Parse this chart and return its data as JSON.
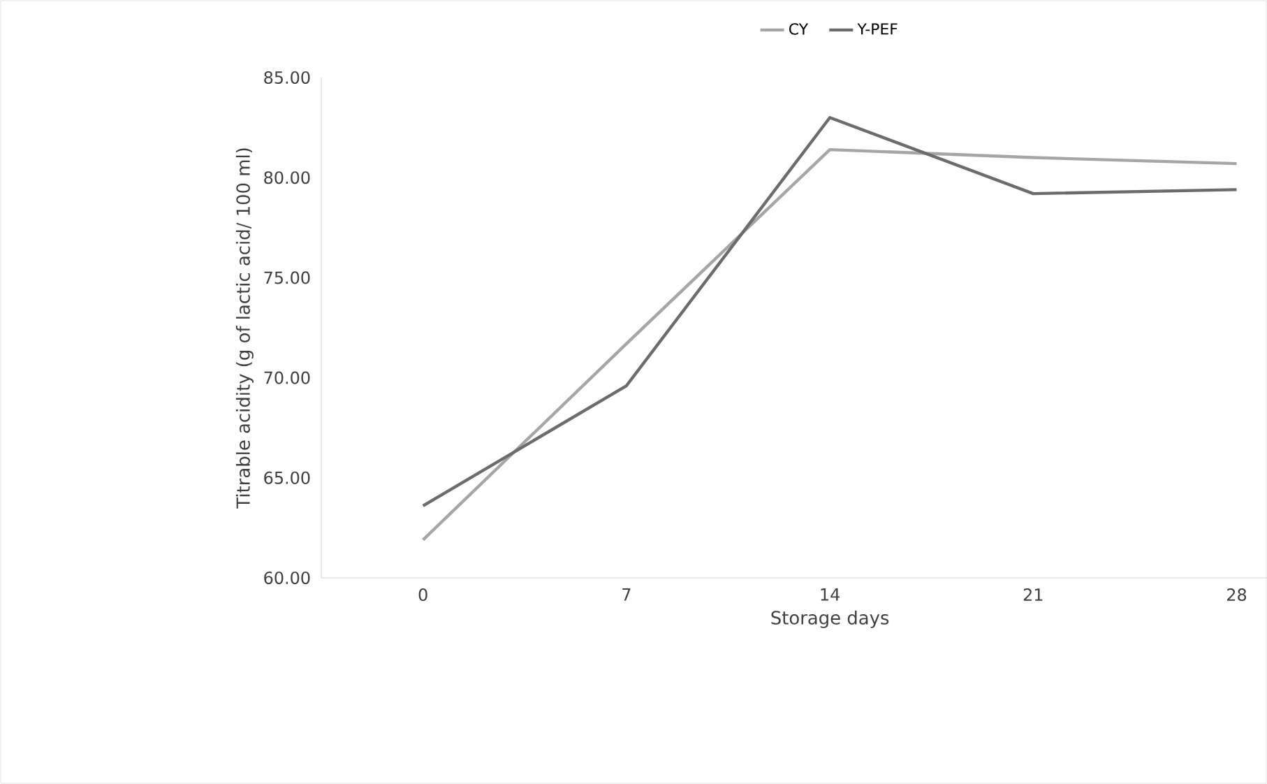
{
  "chart_data": {
    "type": "line",
    "xlabel": "Storage days",
    "ylabel": "Titrable acidity (g of lactic acid/ 100 ml)",
    "categories": [
      "0",
      "7",
      "14",
      "21",
      "28"
    ],
    "series": [
      {
        "name": "CY",
        "color": "#a6a6a6",
        "values": [
          61.9,
          71.7,
          81.4,
          81.0,
          80.7
        ]
      },
      {
        "name": "Y-PEF",
        "color": "#6b6b70",
        "values": [
          63.6,
          69.6,
          83.0,
          79.2,
          79.4
        ]
      }
    ],
    "ylim": [
      60,
      85
    ],
    "yticks": [
      {
        "value": 60,
        "label": "60.00"
      },
      {
        "value": 65,
        "label": "65.00"
      },
      {
        "value": 70,
        "label": "70.00"
      },
      {
        "value": 75,
        "label": "75.00"
      },
      {
        "value": 80,
        "label": "80.00"
      },
      {
        "value": 85,
        "label": "85.00"
      }
    ],
    "grid": false,
    "legend": "top",
    "marker": "none",
    "line_style": "solid"
  }
}
